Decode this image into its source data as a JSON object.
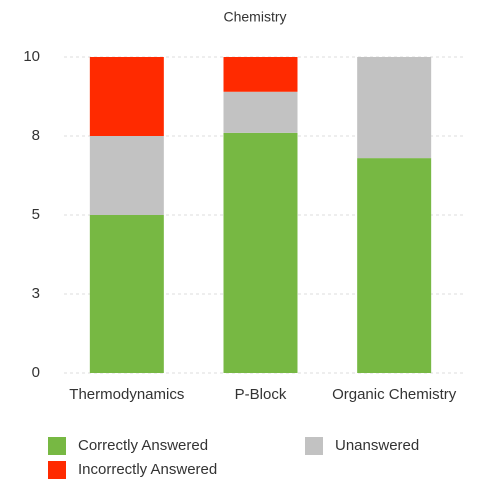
{
  "chart_data": {
    "type": "stacked_bar",
    "title": "Chemistry",
    "categories": [
      "Thermodynamics",
      "P-Block",
      "Organic Chemistry"
    ],
    "series": [
      {
        "name": "Correctly Answered",
        "color": "#77b843",
        "values": [
          5,
          7.6,
          6.8
        ]
      },
      {
        "name": "Unanswered",
        "color": "#c2c2c2",
        "values": [
          2.5,
          1.3,
          3.2
        ]
      },
      {
        "name": "Incorrectly Answered",
        "color": "#ff2a00",
        "values": [
          2.5,
          1.1,
          0
        ]
      }
    ],
    "ylim": [
      0,
      10
    ],
    "yticks": [
      0,
      {
        "value": 2.5,
        "label": "3"
      },
      5,
      {
        "value": 7.5,
        "label": "8"
      },
      10
    ],
    "grid": true
  }
}
